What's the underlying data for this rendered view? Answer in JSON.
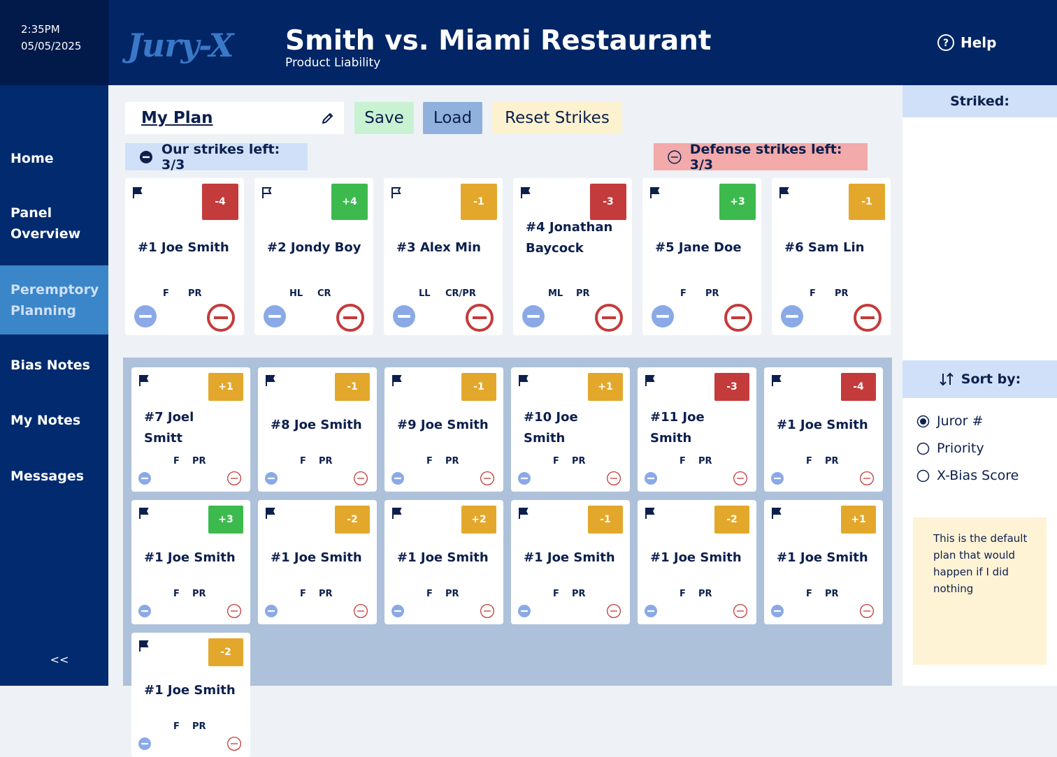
{
  "header": {
    "time": "2:35PM",
    "date": "05/05/2025",
    "logo": "Jury-X",
    "title": "Smith vs. Miami Restaurant",
    "subtitle": "Product Liability",
    "help": "Help"
  },
  "nav": {
    "items": [
      "Home",
      "Panel Overview",
      "Peremptory Planning",
      "Bias Notes",
      "My Notes",
      "Messages"
    ],
    "active": 2,
    "collapse": "<<"
  },
  "toolbar": {
    "plan_name": "My Plan",
    "save": "Save",
    "load": "Load",
    "reset": "Reset Strikes"
  },
  "strikes": {
    "ours": "Our strikes left: 3/3",
    "defense": "Defense strikes left: 3/3"
  },
  "panel": [
    {
      "name": "#1 Joe Smith",
      "score": "-4",
      "tags": [
        "F",
        "PR"
      ],
      "flagged": true
    },
    {
      "name": "#2 Jondy Boy",
      "score": "+4",
      "tags": [
        "HL",
        "CR"
      ],
      "flagged": false
    },
    {
      "name": "#3 Alex Min",
      "score": "-1",
      "tags": [
        "LL",
        "CR/PR"
      ],
      "flagged": false
    },
    {
      "name": "#4 Jonathan Baycock",
      "score": "-3",
      "tags": [
        "ML",
        "PR"
      ],
      "flagged": true
    },
    {
      "name": "#5 Jane Doe",
      "score": "+3",
      "tags": [
        "F",
        "PR"
      ],
      "flagged": true
    },
    {
      "name": "#6 Sam Lin",
      "score": "-1",
      "tags": [
        "F",
        "PR"
      ],
      "flagged": true
    }
  ],
  "pool": [
    {
      "name": "#7 Joel Smitt",
      "score": "+1",
      "tags": [
        "F",
        "PR"
      ],
      "flagged": true
    },
    {
      "name": "#8 Joe Smith",
      "score": "-1",
      "tags": [
        "F",
        "PR"
      ],
      "flagged": true
    },
    {
      "name": "#9 Joe Smith",
      "score": "-1",
      "tags": [
        "F",
        "PR"
      ],
      "flagged": true
    },
    {
      "name": "#10 Joe Smith",
      "score": "+1",
      "tags": [
        "F",
        "PR"
      ],
      "flagged": true
    },
    {
      "name": "#11 Joe Smith",
      "score": "-3",
      "tags": [
        "F",
        "PR"
      ],
      "flagged": true
    },
    {
      "name": "#1 Joe Smith",
      "score": "-4",
      "tags": [
        "F",
        "PR"
      ],
      "flagged": true
    },
    {
      "name": "#1 Joe Smith",
      "score": "+3",
      "tags": [
        "F",
        "PR"
      ],
      "flagged": true
    },
    {
      "name": "#1 Joe Smith",
      "score": "-2",
      "tags": [
        "F",
        "PR"
      ],
      "flagged": true
    },
    {
      "name": "#1 Joe Smith",
      "score": "+2",
      "tags": [
        "F",
        "PR"
      ],
      "flagged": true
    },
    {
      "name": "#1 Joe Smith",
      "score": "-1",
      "tags": [
        "F",
        "PR"
      ],
      "flagged": true
    },
    {
      "name": "#1 Joe Smith",
      "score": "-2",
      "tags": [
        "F",
        "PR"
      ],
      "flagged": true
    },
    {
      "name": "#1 Joe Smith",
      "score": "+1",
      "tags": [
        "F",
        "PR"
      ],
      "flagged": true
    },
    {
      "name": "#1 Joe Smith",
      "score": "-2",
      "tags": [
        "F",
        "PR"
      ],
      "flagged": true
    }
  ],
  "sidebar": {
    "striked_title": "Striked:",
    "sort_title": "Sort by:",
    "sort_options": [
      "Juror #",
      "Priority",
      "X-Bias Score"
    ],
    "sort_selected": 0,
    "note": "This is the default plan that would happen if I did nothing"
  }
}
